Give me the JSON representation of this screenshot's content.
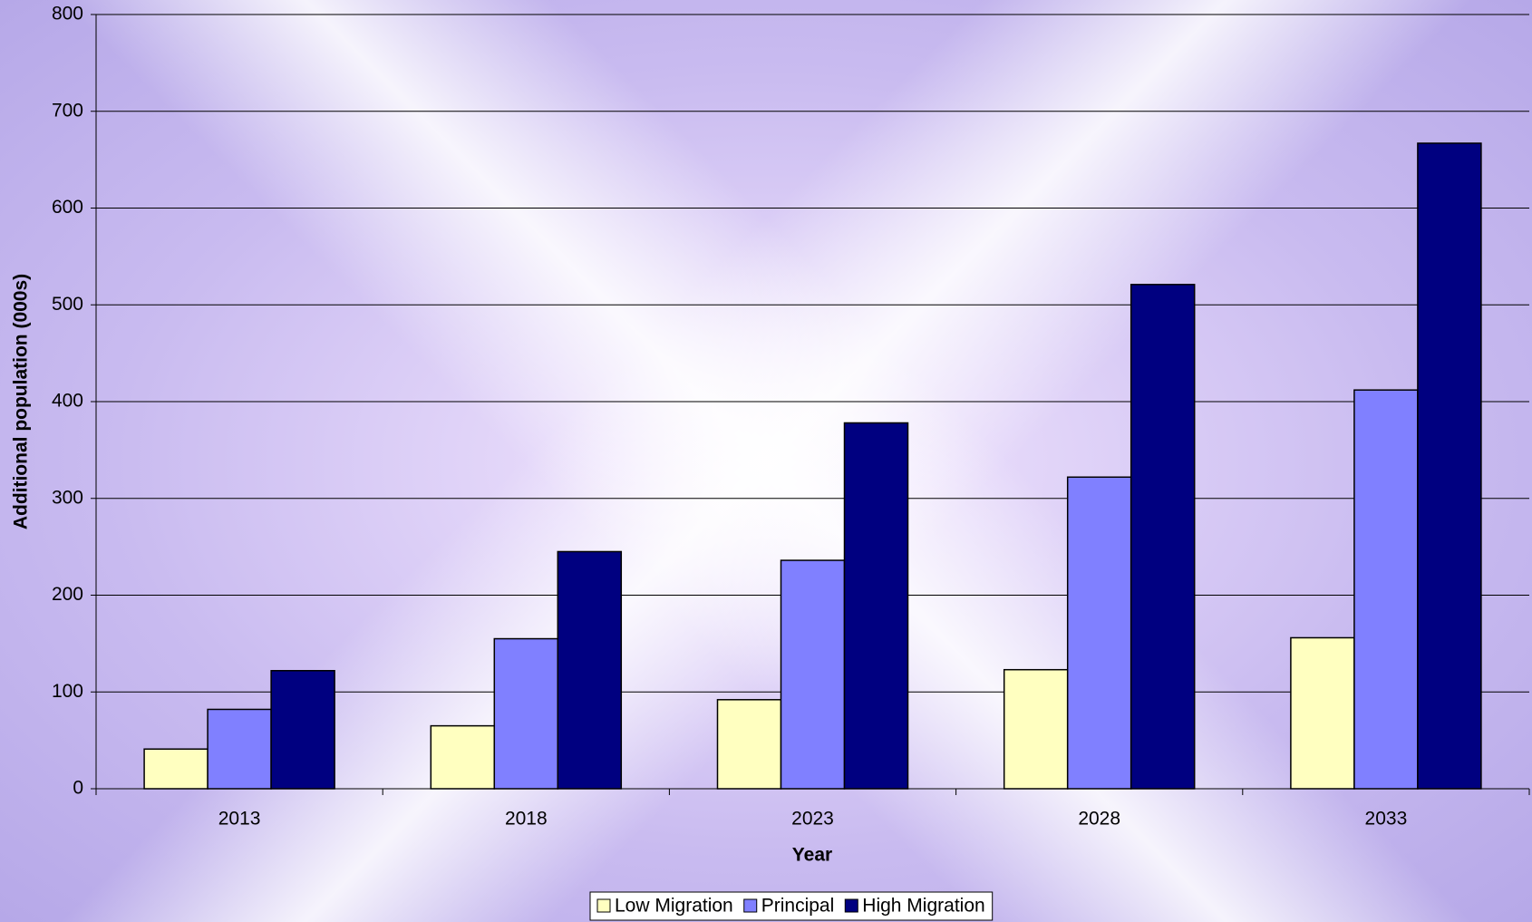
{
  "chart_data": {
    "type": "bar",
    "categories": [
      "2013",
      "2018",
      "2023",
      "2028",
      "2033"
    ],
    "series": [
      {
        "name": "Low Migration",
        "color": "#ffffc0",
        "values": [
          41,
          65,
          92,
          123,
          156
        ]
      },
      {
        "name": "Principal",
        "color": "#8080ff",
        "values": [
          82,
          155,
          236,
          322,
          412
        ]
      },
      {
        "name": "High Migration",
        "color": "#000080",
        "values": [
          122,
          245,
          378,
          521,
          667
        ]
      }
    ],
    "xlabel": "Year",
    "ylabel": "Additional population (000s)",
    "ylim": [
      0,
      800
    ],
    "yticks": [
      0,
      100,
      200,
      300,
      400,
      500,
      600,
      700,
      800
    ],
    "grid": true,
    "legend": "bottom"
  }
}
